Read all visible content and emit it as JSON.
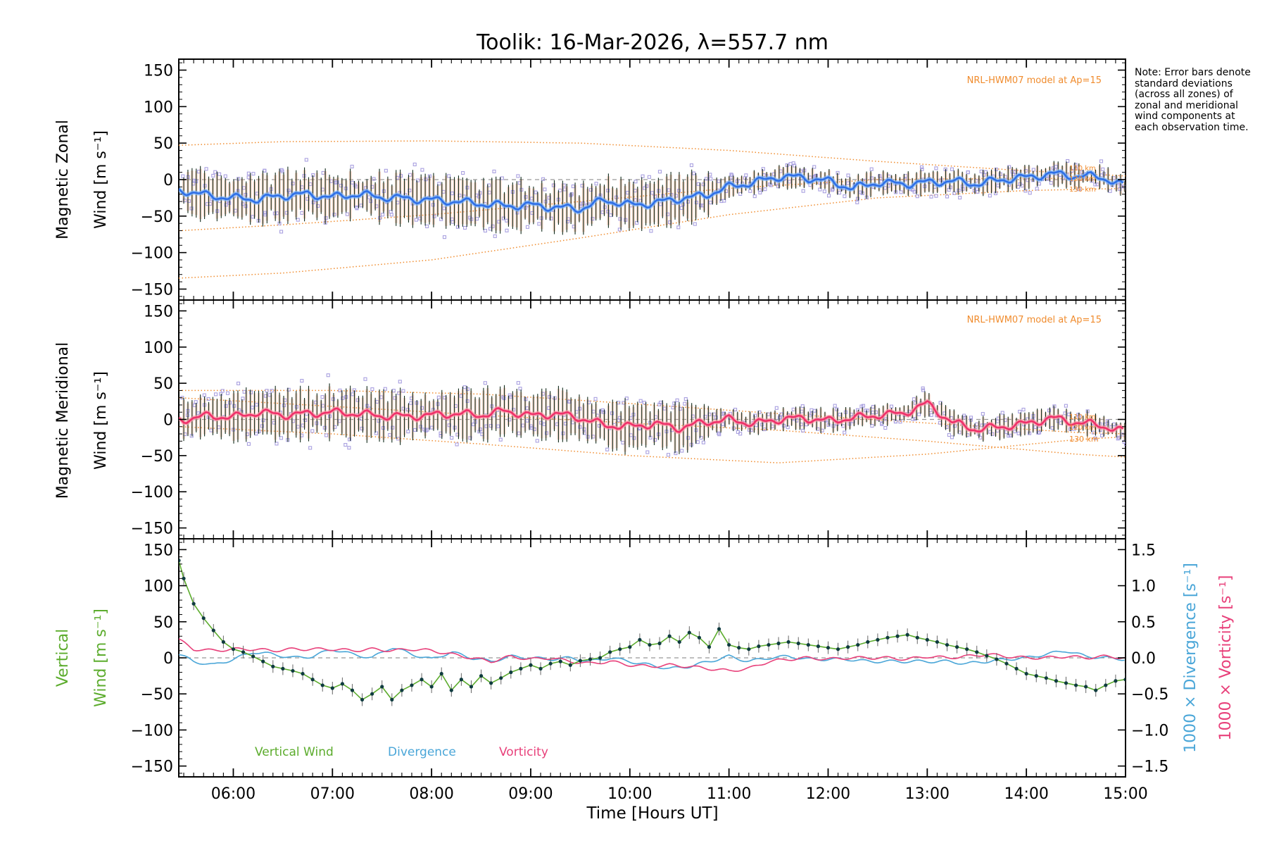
{
  "chart_data": [
    {
      "type": "line",
      "panel": "zonal",
      "title": "Toolik: 16-Mar-2026, λ=557.7 nm",
      "ylabel_top": "Magnetic Zonal",
      "ylabel_bottom": "Wind [m s⁻¹]",
      "ylim": [
        -165,
        165
      ],
      "yticks": [
        "150",
        "100",
        "50",
        "0",
        "−50",
        "−100",
        "−150"
      ],
      "ytick_values": [
        150,
        100,
        50,
        0,
        -50,
        -100,
        -150
      ],
      "xlim": [
        5.45,
        15.0
      ],
      "model_label": "NRL-HWM07 model at Ap=15",
      "model_altitudes": [
        "110 km",
        "120 km",
        "130 km"
      ],
      "colors": {
        "mean": "#2f6fe8",
        "mean_glow": "#7ab8ff",
        "model": "#f08c2e",
        "points": "#a9a0e0",
        "error_bar": "#102a1a"
      },
      "series": [
        {
          "name": "Zonal wind (mean)",
          "x": [
            5.5,
            5.75,
            6.0,
            6.25,
            6.5,
            6.75,
            7.0,
            7.25,
            7.5,
            7.75,
            8.0,
            8.25,
            8.5,
            8.75,
            9.0,
            9.25,
            9.5,
            9.75,
            10.0,
            10.25,
            10.5,
            10.75,
            11.0,
            11.25,
            11.5,
            11.75,
            12.0,
            12.25,
            12.5,
            12.75,
            13.0,
            13.25,
            13.5,
            13.75,
            14.0,
            14.25,
            14.5,
            14.75,
            15.0
          ],
          "values": [
            -15,
            -22,
            -25,
            -27,
            -22,
            -20,
            -24,
            -20,
            -24,
            -26,
            -28,
            -30,
            -33,
            -36,
            -35,
            -38,
            -40,
            -28,
            -35,
            -32,
            -26,
            -22,
            -10,
            -4,
            4,
            3,
            -2,
            -12,
            -4,
            -6,
            -4,
            -2,
            -6,
            0,
            3,
            8,
            5,
            4,
            -10
          ]
        }
      ],
      "model_curves": [
        {
          "label": "110 km",
          "x": [
            5.45,
            6.5,
            8.0,
            9.5,
            11.0,
            12.5,
            14.0,
            15.0
          ],
          "values": [
            47,
            52,
            53,
            50,
            40,
            25,
            12,
            5
          ]
        },
        {
          "label": "120 km",
          "x": [
            5.45,
            6.5,
            8.0,
            9.5,
            11.0,
            12.5,
            14.0,
            15.0
          ],
          "values": [
            -70,
            -62,
            -48,
            -30,
            -12,
            0,
            2,
            0
          ]
        },
        {
          "label": "130 km",
          "x": [
            5.45,
            6.5,
            8.0,
            9.5,
            11.0,
            12.5,
            14.0,
            15.0
          ],
          "values": [
            -135,
            -128,
            -110,
            -80,
            -48,
            -25,
            -15,
            -12
          ]
        }
      ]
    },
    {
      "type": "line",
      "panel": "meridional",
      "ylabel_top": "Magnetic Meridional",
      "ylabel_bottom": "Wind [m s⁻¹]",
      "ylim": [
        -165,
        165
      ],
      "yticks": [
        "150",
        "100",
        "50",
        "0",
        "−50",
        "−100",
        "−150"
      ],
      "ytick_values": [
        150,
        100,
        50,
        0,
        -50,
        -100,
        -150
      ],
      "xlim": [
        5.45,
        15.0
      ],
      "model_label": "NRL-HWM07 model at Ap=15",
      "model_altitudes": [
        "110 km",
        "120 km",
        "130 km"
      ],
      "colors": {
        "mean": "#f0306a",
        "mean_glow": "#ff9aa8",
        "model": "#f08c2e",
        "points": "#a9a0e0",
        "error_bar": "#102a1a"
      },
      "series": [
        {
          "name": "Meridional wind (mean)",
          "x": [
            5.5,
            5.75,
            6.0,
            6.25,
            6.5,
            6.75,
            7.0,
            7.25,
            7.5,
            7.75,
            8.0,
            8.25,
            8.5,
            8.75,
            9.0,
            9.25,
            9.5,
            9.75,
            10.0,
            10.25,
            10.5,
            10.75,
            11.0,
            11.25,
            11.5,
            11.75,
            12.0,
            12.25,
            12.5,
            12.75,
            13.0,
            13.25,
            13.5,
            13.75,
            14.0,
            14.25,
            14.5,
            14.75,
            15.0
          ],
          "values": [
            0,
            5,
            3,
            10,
            6,
            8,
            10,
            8,
            5,
            4,
            6,
            8,
            6,
            12,
            5,
            8,
            2,
            -8,
            -10,
            -6,
            -12,
            -4,
            0,
            -6,
            0,
            2,
            -2,
            2,
            6,
            8,
            22,
            -4,
            -14,
            -10,
            -6,
            2,
            -4,
            -8,
            -18
          ]
        }
      ],
      "model_curves": [
        {
          "label": "110 km",
          "x": [
            5.45,
            7.0,
            8.5,
            10.0,
            11.5,
            13.0,
            14.5,
            15.0
          ],
          "values": [
            40,
            40,
            35,
            22,
            8,
            -5,
            -18,
            -20
          ]
        },
        {
          "label": "120 km",
          "x": [
            5.45,
            7.0,
            8.5,
            10.0,
            11.5,
            13.0,
            14.5,
            15.0
          ],
          "values": [
            -10,
            -20,
            -34,
            -50,
            -60,
            -48,
            -28,
            -24
          ]
        },
        {
          "label": "130 km",
          "x": [
            5.45,
            7.0,
            8.5,
            10.0,
            11.5,
            13.0,
            14.5,
            15.0
          ],
          "values": [
            30,
            18,
            6,
            -5,
            -15,
            -30,
            -48,
            -52
          ]
        }
      ]
    },
    {
      "type": "line",
      "panel": "vertical",
      "ylabel_top": "Vertical",
      "ylabel_bottom": "Wind [m s⁻¹]",
      "ylim": [
        -165,
        165
      ],
      "yticks": [
        "150",
        "100",
        "50",
        "0",
        "−50",
        "−100",
        "−150"
      ],
      "ytick_values": [
        150,
        100,
        50,
        0,
        -50,
        -100,
        -150
      ],
      "y2label_divergence": "1000 × Divergence [s⁻¹]",
      "y2label_vorticity": "1000 × Vorticity [s⁻¹]",
      "y2lim": [
        -1.65,
        1.65
      ],
      "y2ticks": [
        "1.5",
        "1.0",
        "0.5",
        "0.0",
        "−0.5",
        "−1.0",
        "−1.5"
      ],
      "y2tick_values": [
        1.5,
        1.0,
        0.5,
        0.0,
        -0.5,
        -1.0,
        -1.5
      ],
      "xlim": [
        5.45,
        15.0
      ],
      "xlabel": "Time [Hours UT]",
      "xticks": [
        "06:00",
        "07:00",
        "08:00",
        "09:00",
        "10:00",
        "11:00",
        "12:00",
        "13:00",
        "14:00",
        "15:00"
      ],
      "xtick_values": [
        6,
        7,
        8,
        9,
        10,
        11,
        12,
        13,
        14,
        15
      ],
      "legend": [
        "Vertical Wind",
        "Divergence",
        "Vorticity"
      ],
      "colors": {
        "vertical": "#5cac2d",
        "divergence": "#4aa6d8",
        "vorticity": "#e8407a",
        "points": "#0f3b3f"
      },
      "series": [
        {
          "name": "Vertical Wind",
          "x": [
            5.45,
            5.5,
            5.6,
            5.7,
            5.8,
            5.9,
            6.0,
            6.1,
            6.2,
            6.3,
            6.4,
            6.5,
            6.6,
            6.7,
            6.8,
            6.9,
            7.0,
            7.1,
            7.2,
            7.3,
            7.4,
            7.5,
            7.6,
            7.7,
            7.8,
            7.9,
            8.0,
            8.1,
            8.2,
            8.3,
            8.4,
            8.5,
            8.6,
            8.7,
            8.8,
            8.9,
            9.0,
            9.1,
            9.2,
            9.3,
            9.4,
            9.5,
            9.6,
            9.7,
            9.8,
            9.9,
            10.0,
            10.1,
            10.2,
            10.3,
            10.4,
            10.5,
            10.6,
            10.7,
            10.8,
            10.9,
            11.0,
            11.1,
            11.2,
            11.3,
            11.4,
            11.5,
            11.6,
            11.7,
            11.8,
            11.9,
            12.0,
            12.1,
            12.2,
            12.3,
            12.4,
            12.5,
            12.6,
            12.7,
            12.8,
            12.9,
            13.0,
            13.1,
            13.2,
            13.3,
            13.4,
            13.5,
            13.6,
            13.7,
            13.8,
            13.9,
            14.0,
            14.1,
            14.2,
            14.3,
            14.4,
            14.5,
            14.6,
            14.7,
            14.8,
            14.9,
            15.0
          ],
          "values": [
            135,
            110,
            75,
            55,
            38,
            22,
            12,
            8,
            2,
            -5,
            -12,
            -15,
            -18,
            -22,
            -30,
            -38,
            -42,
            -36,
            -45,
            -58,
            -50,
            -40,
            -58,
            -45,
            -38,
            -30,
            -40,
            -22,
            -45,
            -30,
            -40,
            -25,
            -35,
            -28,
            -20,
            -15,
            -10,
            -15,
            -8,
            -5,
            -10,
            -4,
            -2,
            0,
            8,
            12,
            15,
            25,
            18,
            20,
            30,
            22,
            35,
            28,
            15,
            40,
            18,
            14,
            12,
            16,
            18,
            20,
            22,
            20,
            18,
            16,
            14,
            12,
            15,
            18,
            22,
            25,
            28,
            30,
            32,
            28,
            25,
            22,
            18,
            15,
            12,
            8,
            3,
            -2,
            -8,
            -15,
            -22,
            -25,
            -28,
            -32,
            -35,
            -38,
            -40,
            -45,
            -38,
            -32,
            -30
          ]
        },
        {
          "name": "Divergence",
          "x": [
            5.45,
            5.6,
            5.8,
            6.0,
            6.2,
            6.4,
            6.6,
            6.8,
            7.0,
            7.2,
            7.4,
            7.6,
            7.8,
            8.0,
            8.2,
            8.4,
            8.6,
            8.8,
            9.0,
            9.2,
            9.4,
            9.6,
            9.8,
            10.0,
            10.2,
            10.4,
            10.6,
            10.8,
            11.0,
            11.2,
            11.4,
            11.6,
            11.8,
            12.0,
            12.2,
            12.4,
            12.6,
            12.8,
            13.0,
            13.2,
            13.4,
            13.6,
            13.8,
            14.0,
            14.2,
            14.4,
            14.6,
            14.8,
            15.0
          ],
          "values": [
            0.05,
            -0.05,
            -0.1,
            -0.02,
            0.08,
            0.05,
            0.0,
            0.02,
            0.12,
            0.05,
            0.0,
            0.15,
            0.05,
            -0.02,
            0.08,
            0.0,
            -0.05,
            0.02,
            0.0,
            -0.02,
            0.0,
            -0.05,
            0.0,
            -0.05,
            -0.1,
            -0.15,
            -0.12,
            -0.05,
            0.02,
            -0.05,
            0.0,
            0.02,
            -0.02,
            -0.02,
            -0.02,
            -0.05,
            -0.05,
            -0.05,
            -0.05,
            -0.05,
            -0.08,
            -0.05,
            -0.02,
            0.0,
            0.05,
            0.1,
            0.02,
            0.0,
            -0.02
          ]
        },
        {
          "name": "Vorticity",
          "x": [
            5.45,
            5.6,
            5.8,
            6.0,
            6.2,
            6.4,
            6.6,
            6.8,
            7.0,
            7.2,
            7.4,
            7.6,
            7.8,
            8.0,
            8.2,
            8.4,
            8.6,
            8.8,
            9.0,
            9.2,
            9.4,
            9.6,
            9.8,
            10.0,
            10.2,
            10.4,
            10.6,
            10.8,
            11.0,
            11.2,
            11.4,
            11.6,
            11.8,
            12.0,
            12.2,
            12.4,
            12.6,
            12.8,
            13.0,
            13.2,
            13.4,
            13.6,
            13.8,
            14.0,
            14.2,
            14.4,
            14.6,
            14.8,
            15.0
          ],
          "values": [
            0.25,
            0.12,
            0.1,
            0.12,
            0.12,
            0.1,
            0.12,
            0.12,
            0.12,
            0.1,
            0.12,
            0.1,
            0.12,
            0.1,
            0.05,
            0.0,
            -0.05,
            0.02,
            -0.02,
            0.0,
            -0.05,
            -0.08,
            -0.05,
            -0.1,
            -0.12,
            -0.1,
            -0.12,
            -0.15,
            -0.18,
            -0.15,
            -0.05,
            -0.02,
            0.0,
            -0.02,
            0.0,
            0.0,
            0.0,
            -0.02,
            0.02,
            0.0,
            0.02,
            0.05,
            0.02,
            0.0,
            0.0,
            0.02,
            0.0,
            0.02,
            0.0
          ]
        }
      ]
    }
  ],
  "note": "Note: Error bars denote standard deviations (across all zones) of zonal and meridional wind components at each observation time."
}
